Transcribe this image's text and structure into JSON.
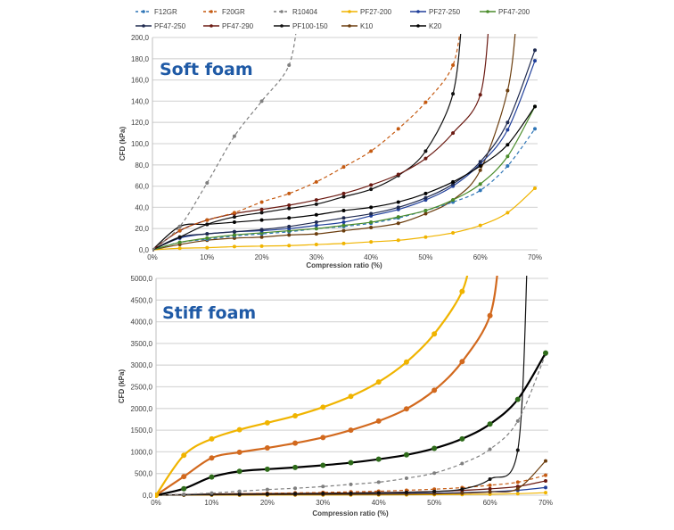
{
  "legend": [
    {
      "name": "F12GR",
      "color": "#2e75b6",
      "dashed": true
    },
    {
      "name": "F20GR",
      "color": "#c55a11",
      "dashed": true
    },
    {
      "name": "R10404",
      "color": "#7f7f7f",
      "dashed": true
    },
    {
      "name": "PF27-200",
      "color": "#f0b400",
      "dashed": false
    },
    {
      "name": "PF27-250",
      "color": "#203f9a",
      "dashed": false
    },
    {
      "name": "PF47-200",
      "color": "#4a8c2a",
      "dashed": false
    },
    {
      "name": "PF47-250",
      "color": "#1f2a4f",
      "dashed": false
    },
    {
      "name": "PF47-290",
      "color": "#6b1a12",
      "dashed": false
    },
    {
      "name": "PF100-150",
      "color": "#111111",
      "dashed": false
    },
    {
      "name": "K10",
      "color": "#6b3d0e",
      "dashed": false
    },
    {
      "name": "K20",
      "color": "#000000",
      "dashed": false
    }
  ],
  "chart_data": [
    {
      "type": "line",
      "title": "Soft foam",
      "xlabel": "Compression ratio (%)",
      "ylabel": "CFD (kPa)",
      "x": [
        0,
        5,
        10,
        15,
        20,
        25,
        30,
        35,
        40,
        45,
        50,
        55,
        60,
        65,
        70
      ],
      "xticks": [
        "0%",
        "10%",
        "20%",
        "30%",
        "40%",
        "50%",
        "60%",
        "70%"
      ],
      "yticks": [
        "0,0",
        "20,0",
        "40,0",
        "60,0",
        "80,0",
        "100,0",
        "120,0",
        "140,0",
        "160,0",
        "180,0",
        "200,0"
      ],
      "xlim": [
        0,
        70
      ],
      "ylim": [
        0,
        200
      ],
      "grid": true,
      "legend": "top",
      "series": [
        {
          "name": "R10404",
          "color": "#7f7f7f",
          "dashed": true,
          "values": [
            0,
            22,
            63,
            107,
            140,
            174,
            null,
            null,
            null,
            null,
            null,
            null,
            null,
            null,
            null
          ]
        },
        {
          "name": "F20GR",
          "color": "#c55a11",
          "dashed": true,
          "values": [
            0,
            18,
            28,
            35,
            45,
            53,
            64,
            78,
            93,
            114,
            139,
            174,
            null,
            null,
            null
          ]
        },
        {
          "name": "PF47-290",
          "color": "#6b1a12",
          "dashed": false,
          "values": [
            0,
            18,
            28,
            34,
            38,
            42,
            47,
            53,
            61,
            71,
            86,
            110,
            146,
            null,
            null
          ]
        },
        {
          "name": "PF100-150",
          "color": "#111111",
          "dashed": false,
          "values": [
            0,
            12,
            24,
            31,
            35,
            39,
            43,
            50,
            57,
            70,
            93,
            147,
            null,
            null,
            null
          ]
        },
        {
          "name": "K20",
          "color": "#000000",
          "dashed": false,
          "values": [
            0,
            22,
            24,
            26,
            28,
            30,
            33,
            37,
            40,
            45,
            53,
            64,
            79,
            99,
            135
          ]
        },
        {
          "name": "PF47-250",
          "color": "#1f2a4f",
          "dashed": false,
          "values": [
            0,
            12,
            15,
            17,
            19,
            22,
            26,
            30,
            34,
            40,
            49,
            62,
            83,
            120,
            188
          ]
        },
        {
          "name": "PF27-250",
          "color": "#203f9a",
          "dashed": false,
          "values": [
            0,
            11,
            15,
            17,
            18,
            20,
            23,
            26,
            32,
            38,
            47,
            60,
            81,
            113,
            178
          ]
        },
        {
          "name": "PF47-200",
          "color": "#4a8c2a",
          "dashed": false,
          "values": [
            0,
            7,
            11,
            14,
            16,
            18,
            20,
            23,
            26,
            31,
            37,
            47,
            62,
            88,
            135
          ]
        },
        {
          "name": "F12GR",
          "color": "#2e75b6",
          "dashed": true,
          "values": [
            0,
            7,
            10,
            13,
            15,
            17,
            20,
            22,
            25,
            30,
            37,
            45,
            56,
            79,
            114
          ]
        },
        {
          "name": "K10",
          "color": "#6b3d0e",
          "dashed": false,
          "values": [
            0,
            5,
            9,
            11,
            12,
            14,
            15,
            18,
            21,
            25,
            34,
            47,
            75,
            150,
            null
          ]
        },
        {
          "name": "PF27-200",
          "color": "#f0b400",
          "dashed": false,
          "values": [
            0,
            1.5,
            2,
            3,
            3.5,
            4,
            5,
            6,
            7.5,
            9,
            12,
            16,
            23,
            35,
            58
          ]
        }
      ]
    },
    {
      "type": "line",
      "title": "Stiff foam",
      "xlabel": "Compression ratio (%)",
      "ylabel": "CFD (kPa)",
      "x": [
        0,
        5,
        10,
        15,
        20,
        25,
        30,
        35,
        40,
        45,
        50,
        55,
        60,
        65,
        70
      ],
      "xticks": [
        "0%",
        "10%",
        "20%",
        "30%",
        "40%",
        "50%",
        "60%",
        "70%"
      ],
      "yticks": [
        "0,0",
        "500,0",
        "1000,0",
        "1500,0",
        "2000,0",
        "2500,0",
        "3000,0",
        "3500,0",
        "4000,0",
        "4500,0",
        "5000,0"
      ],
      "xlim": [
        0,
        70
      ],
      "ylim": [
        0,
        5000
      ],
      "grid": true,
      "series": [
        {
          "color": "#f0b400",
          "dashed": false,
          "thick": true,
          "values": [
            0,
            920,
            1300,
            1510,
            1670,
            1830,
            2030,
            2280,
            2610,
            3070,
            3720,
            4700,
            null,
            null,
            null
          ]
        },
        {
          "color": "#d2691e",
          "dashed": false,
          "thick": true,
          "values": [
            0,
            430,
            860,
            990,
            1090,
            1200,
            1330,
            1500,
            1710,
            1990,
            2420,
            3080,
            4140,
            null,
            null
          ]
        },
        {
          "color": "#000000",
          "marker": "#2e6b1a",
          "dashed": false,
          "thick": true,
          "values": [
            0,
            150,
            420,
            550,
            600,
            640,
            690,
            750,
            830,
            930,
            1080,
            1300,
            1640,
            2210,
            3280
          ]
        },
        {
          "color": "#7f7f7f",
          "dashed": true,
          "values": [
            0,
            20,
            50,
            90,
            130,
            160,
            200,
            250,
            300,
            390,
            510,
            730,
            1060,
            1710,
            3250
          ]
        },
        {
          "color": "#111111",
          "dashed": false,
          "values": [
            0,
            10,
            20,
            25,
            30,
            35,
            40,
            45,
            55,
            65,
            85,
            140,
            370,
            1040,
            null
          ]
        },
        {
          "color": "#6b3d0e",
          "dashed": false,
          "values": [
            0,
            5,
            8,
            10,
            12,
            14,
            15,
            18,
            21,
            25,
            34,
            47,
            75,
            150,
            790
          ]
        },
        {
          "color": "#c55a11",
          "dashed": true,
          "values": [
            0,
            15,
            28,
            35,
            45,
            53,
            64,
            78,
            93,
            114,
            139,
            174,
            230,
            300,
            460
          ]
        },
        {
          "color": "#6b1a12",
          "dashed": false,
          "values": [
            0,
            15,
            28,
            34,
            38,
            42,
            47,
            53,
            61,
            71,
            86,
            110,
            146,
            200,
            330
          ]
        },
        {
          "color": "#203f9a",
          "dashed": false,
          "values": [
            0,
            10,
            15,
            17,
            18,
            20,
            23,
            26,
            32,
            38,
            47,
            60,
            81,
            113,
            178
          ]
        },
        {
          "color": "#f0b400",
          "dashed": false,
          "values": [
            0,
            1.5,
            2,
            3,
            3.5,
            4,
            5,
            6,
            7.5,
            9,
            12,
            16,
            23,
            35,
            58
          ]
        }
      ]
    }
  ]
}
